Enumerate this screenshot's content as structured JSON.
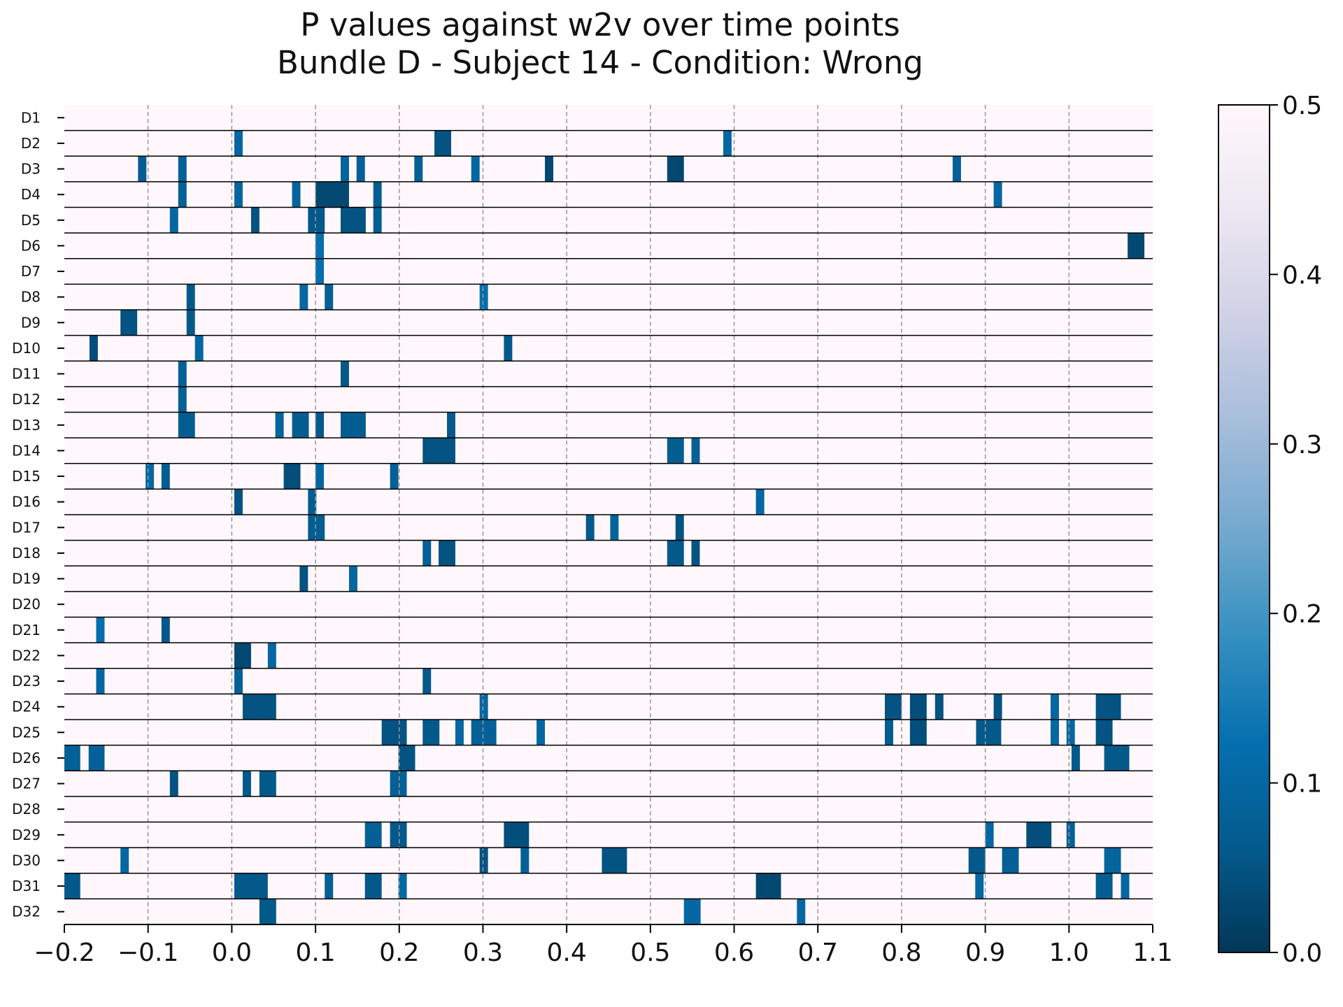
{
  "chart_data": {
    "type": "heatmap",
    "title": "P values against w2v over time points",
    "subtitle": "Bundle D - Subject 14 - Condition: Wrong",
    "xlabel": "",
    "ylabel": "",
    "xlim": [
      -0.2,
      1.1
    ],
    "x_ticks": [
      "−0.2",
      "−0.1",
      "0.0",
      "0.1",
      "0.2",
      "0.3",
      "0.4",
      "0.5",
      "0.6",
      "0.7",
      "0.8",
      "0.9",
      "1.0",
      "1.1"
    ],
    "x_tick_values": [
      -0.2,
      -0.1,
      0.0,
      0.1,
      0.2,
      0.3,
      0.4,
      0.5,
      0.6,
      0.7,
      0.8,
      0.9,
      1.0,
      1.1
    ],
    "grid": "vertical dashed at ticks",
    "colorbar": {
      "min": 0.0,
      "max": 0.5,
      "ticks": [
        "0.0",
        "0.1",
        "0.2",
        "0.3",
        "0.4",
        "0.5"
      ],
      "tick_values": [
        0.0,
        0.1,
        0.2,
        0.3,
        0.4,
        0.5
      ],
      "colormap": "PuBu_r"
    },
    "rows": [
      {
        "label": "D1",
        "segments": []
      },
      {
        "label": "D2",
        "segments": [
          {
            "x0": 0.003,
            "x1": 0.013,
            "p": 0.1
          },
          {
            "x0": 0.242,
            "x1": 0.262,
            "p": 0.05
          },
          {
            "x0": 0.587,
            "x1": 0.597,
            "p": 0.1
          }
        ]
      },
      {
        "label": "D3",
        "segments": [
          {
            "x0": -0.112,
            "x1": -0.102,
            "p": 0.07
          },
          {
            "x0": -0.064,
            "x1": -0.054,
            "p": 0.08
          },
          {
            "x0": 0.13,
            "x1": 0.14,
            "p": 0.09
          },
          {
            "x0": 0.149,
            "x1": 0.159,
            "p": 0.08
          },
          {
            "x0": 0.218,
            "x1": 0.228,
            "p": 0.08
          },
          {
            "x0": 0.286,
            "x1": 0.296,
            "p": 0.1
          },
          {
            "x0": 0.374,
            "x1": 0.384,
            "p": 0.03
          },
          {
            "x0": 0.52,
            "x1": 0.54,
            "p": 0.03
          },
          {
            "x0": 0.861,
            "x1": 0.871,
            "p": 0.08
          }
        ]
      },
      {
        "label": "D4",
        "segments": [
          {
            "x0": -0.064,
            "x1": -0.054,
            "p": 0.08
          },
          {
            "x0": 0.003,
            "x1": 0.013,
            "p": 0.1
          },
          {
            "x0": 0.072,
            "x1": 0.082,
            "p": 0.09
          },
          {
            "x0": 0.1,
            "x1": 0.14,
            "p": 0.03
          },
          {
            "x0": 0.169,
            "x1": 0.179,
            "p": 0.07
          },
          {
            "x0": 0.91,
            "x1": 0.92,
            "p": 0.1
          }
        ]
      },
      {
        "label": "D5",
        "segments": [
          {
            "x0": -0.074,
            "x1": -0.064,
            "p": 0.1
          },
          {
            "x0": 0.023,
            "x1": 0.033,
            "p": 0.05
          },
          {
            "x0": 0.091,
            "x1": 0.111,
            "p": 0.06
          },
          {
            "x0": 0.13,
            "x1": 0.16,
            "p": 0.05
          },
          {
            "x0": 0.169,
            "x1": 0.179,
            "p": 0.07
          }
        ]
      },
      {
        "label": "D6",
        "segments": [
          {
            "x0": 0.1,
            "x1": 0.11,
            "p": 0.12
          },
          {
            "x0": 1.07,
            "x1": 1.09,
            "p": 0.03
          }
        ]
      },
      {
        "label": "D7",
        "segments": [
          {
            "x0": 0.1,
            "x1": 0.11,
            "p": 0.12
          }
        ]
      },
      {
        "label": "D8",
        "segments": [
          {
            "x0": -0.054,
            "x1": -0.044,
            "p": 0.06
          },
          {
            "x0": 0.081,
            "x1": 0.091,
            "p": 0.1
          },
          {
            "x0": 0.111,
            "x1": 0.121,
            "p": 0.08
          },
          {
            "x0": 0.296,
            "x1": 0.306,
            "p": 0.12
          }
        ]
      },
      {
        "label": "D9",
        "segments": [
          {
            "x0": -0.133,
            "x1": -0.113,
            "p": 0.05
          },
          {
            "x0": -0.054,
            "x1": -0.044,
            "p": 0.06
          }
        ]
      },
      {
        "label": "D10",
        "segments": [
          {
            "x0": -0.17,
            "x1": -0.16,
            "p": 0.04
          },
          {
            "x0": -0.044,
            "x1": -0.034,
            "p": 0.1
          },
          {
            "x0": 0.325,
            "x1": 0.335,
            "p": 0.06
          }
        ]
      },
      {
        "label": "D11",
        "segments": [
          {
            "x0": -0.064,
            "x1": -0.054,
            "p": 0.08
          },
          {
            "x0": 0.13,
            "x1": 0.14,
            "p": 0.06
          }
        ]
      },
      {
        "label": "D12",
        "segments": [
          {
            "x0": -0.064,
            "x1": -0.054,
            "p": 0.08
          }
        ]
      },
      {
        "label": "D13",
        "segments": [
          {
            "x0": -0.064,
            "x1": -0.044,
            "p": 0.07
          },
          {
            "x0": 0.052,
            "x1": 0.062,
            "p": 0.09
          },
          {
            "x0": 0.072,
            "x1": 0.092,
            "p": 0.07
          },
          {
            "x0": 0.1,
            "x1": 0.11,
            "p": 0.06
          },
          {
            "x0": 0.13,
            "x1": 0.16,
            "p": 0.07
          },
          {
            "x0": 0.257,
            "x1": 0.267,
            "p": 0.06
          }
        ]
      },
      {
        "label": "D14",
        "segments": [
          {
            "x0": 0.228,
            "x1": 0.267,
            "p": 0.05
          },
          {
            "x0": 0.52,
            "x1": 0.54,
            "p": 0.07
          },
          {
            "x0": 0.549,
            "x1": 0.559,
            "p": 0.08
          }
        ]
      },
      {
        "label": "D15",
        "segments": [
          {
            "x0": -0.103,
            "x1": -0.093,
            "p": 0.1
          },
          {
            "x0": -0.084,
            "x1": -0.074,
            "p": 0.07
          },
          {
            "x0": 0.062,
            "x1": 0.082,
            "p": 0.04
          },
          {
            "x0": 0.1,
            "x1": 0.11,
            "p": 0.1
          },
          {
            "x0": 0.189,
            "x1": 0.199,
            "p": 0.08
          }
        ]
      },
      {
        "label": "D16",
        "segments": [
          {
            "x0": 0.003,
            "x1": 0.013,
            "p": 0.05
          },
          {
            "x0": 0.091,
            "x1": 0.101,
            "p": 0.07
          },
          {
            "x0": 0.626,
            "x1": 0.636,
            "p": 0.1
          }
        ]
      },
      {
        "label": "D17",
        "segments": [
          {
            "x0": 0.091,
            "x1": 0.111,
            "p": 0.07
          },
          {
            "x0": 0.423,
            "x1": 0.433,
            "p": 0.06
          },
          {
            "x0": 0.452,
            "x1": 0.462,
            "p": 0.09
          },
          {
            "x0": 0.53,
            "x1": 0.54,
            "p": 0.05
          }
        ]
      },
      {
        "label": "D18",
        "segments": [
          {
            "x0": 0.228,
            "x1": 0.238,
            "p": 0.08
          },
          {
            "x0": 0.247,
            "x1": 0.267,
            "p": 0.05
          },
          {
            "x0": 0.52,
            "x1": 0.54,
            "p": 0.06
          },
          {
            "x0": 0.549,
            "x1": 0.559,
            "p": 0.05
          }
        ]
      },
      {
        "label": "D19",
        "segments": [
          {
            "x0": 0.081,
            "x1": 0.091,
            "p": 0.05
          },
          {
            "x0": 0.14,
            "x1": 0.15,
            "p": 0.1
          }
        ]
      },
      {
        "label": "D20",
        "segments": []
      },
      {
        "label": "D21",
        "segments": [
          {
            "x0": -0.162,
            "x1": -0.152,
            "p": 0.12
          },
          {
            "x0": -0.084,
            "x1": -0.074,
            "p": 0.06
          }
        ]
      },
      {
        "label": "D22",
        "segments": [
          {
            "x0": 0.003,
            "x1": 0.023,
            "p": 0.03
          },
          {
            "x0": 0.043,
            "x1": 0.053,
            "p": 0.1
          }
        ]
      },
      {
        "label": "D23",
        "segments": [
          {
            "x0": -0.162,
            "x1": -0.152,
            "p": 0.1
          },
          {
            "x0": 0.003,
            "x1": 0.013,
            "p": 0.08
          },
          {
            "x0": 0.228,
            "x1": 0.238,
            "p": 0.06
          }
        ]
      },
      {
        "label": "D24",
        "segments": [
          {
            "x0": 0.013,
            "x1": 0.053,
            "p": 0.05
          },
          {
            "x0": 0.296,
            "x1": 0.306,
            "p": 0.1
          },
          {
            "x0": 0.78,
            "x1": 0.8,
            "p": 0.05
          },
          {
            "x0": 0.81,
            "x1": 0.83,
            "p": 0.04
          },
          {
            "x0": 0.84,
            "x1": 0.85,
            "p": 0.05
          },
          {
            "x0": 0.91,
            "x1": 0.92,
            "p": 0.05
          },
          {
            "x0": 0.978,
            "x1": 0.988,
            "p": 0.1
          },
          {
            "x0": 1.032,
            "x1": 1.062,
            "p": 0.05
          }
        ]
      },
      {
        "label": "D25",
        "segments": [
          {
            "x0": 0.179,
            "x1": 0.209,
            "p": 0.05
          },
          {
            "x0": 0.228,
            "x1": 0.248,
            "p": 0.06
          },
          {
            "x0": 0.267,
            "x1": 0.277,
            "p": 0.1
          },
          {
            "x0": 0.286,
            "x1": 0.316,
            "p": 0.08
          },
          {
            "x0": 0.364,
            "x1": 0.374,
            "p": 0.1
          },
          {
            "x0": 0.78,
            "x1": 0.79,
            "p": 0.07
          },
          {
            "x0": 0.81,
            "x1": 0.83,
            "p": 0.04
          },
          {
            "x0": 0.889,
            "x1": 0.919,
            "p": 0.06
          },
          {
            "x0": 0.978,
            "x1": 0.988,
            "p": 0.1
          },
          {
            "x0": 0.997,
            "x1": 1.007,
            "p": 0.1
          },
          {
            "x0": 1.032,
            "x1": 1.052,
            "p": 0.05
          }
        ]
      },
      {
        "label": "D26",
        "segments": [
          {
            "x0": -0.2,
            "x1": -0.181,
            "p": 0.08
          },
          {
            "x0": -0.171,
            "x1": -0.152,
            "p": 0.08
          },
          {
            "x0": 0.199,
            "x1": 0.219,
            "p": 0.05
          },
          {
            "x0": 1.003,
            "x1": 1.013,
            "p": 0.06
          },
          {
            "x0": 1.042,
            "x1": 1.072,
            "p": 0.06
          }
        ]
      },
      {
        "label": "D27",
        "segments": [
          {
            "x0": -0.074,
            "x1": -0.064,
            "p": 0.05
          },
          {
            "x0": 0.013,
            "x1": 0.023,
            "p": 0.06
          },
          {
            "x0": 0.033,
            "x1": 0.053,
            "p": 0.06
          },
          {
            "x0": 0.189,
            "x1": 0.209,
            "p": 0.08
          }
        ]
      },
      {
        "label": "D28",
        "segments": []
      },
      {
        "label": "D29",
        "segments": [
          {
            "x0": 0.159,
            "x1": 0.179,
            "p": 0.08
          },
          {
            "x0": 0.189,
            "x1": 0.209,
            "p": 0.06
          },
          {
            "x0": 0.325,
            "x1": 0.355,
            "p": 0.04
          },
          {
            "x0": 0.9,
            "x1": 0.91,
            "p": 0.1
          },
          {
            "x0": 0.949,
            "x1": 0.979,
            "p": 0.04
          },
          {
            "x0": 0.997,
            "x1": 1.007,
            "p": 0.08
          }
        ]
      },
      {
        "label": "D30",
        "segments": [
          {
            "x0": -0.133,
            "x1": -0.123,
            "p": 0.1
          },
          {
            "x0": 0.296,
            "x1": 0.306,
            "p": 0.05
          },
          {
            "x0": 0.345,
            "x1": 0.355,
            "p": 0.08
          },
          {
            "x0": 0.442,
            "x1": 0.472,
            "p": 0.05
          },
          {
            "x0": 0.88,
            "x1": 0.9,
            "p": 0.06
          },
          {
            "x0": 0.92,
            "x1": 0.94,
            "p": 0.08
          },
          {
            "x0": 1.042,
            "x1": 1.062,
            "p": 0.09
          }
        ]
      },
      {
        "label": "D31",
        "segments": [
          {
            "x0": -0.2,
            "x1": -0.181,
            "p": 0.06
          },
          {
            "x0": 0.003,
            "x1": 0.043,
            "p": 0.06
          },
          {
            "x0": 0.111,
            "x1": 0.121,
            "p": 0.08
          },
          {
            "x0": 0.159,
            "x1": 0.179,
            "p": 0.06
          },
          {
            "x0": 0.199,
            "x1": 0.209,
            "p": 0.1
          },
          {
            "x0": 0.626,
            "x1": 0.656,
            "p": 0.03
          },
          {
            "x0": 0.888,
            "x1": 0.898,
            "p": 0.1
          },
          {
            "x0": 1.032,
            "x1": 1.052,
            "p": 0.07
          },
          {
            "x0": 1.062,
            "x1": 1.072,
            "p": 0.1
          }
        ]
      },
      {
        "label": "D32",
        "segments": [
          {
            "x0": 0.033,
            "x1": 0.053,
            "p": 0.06
          },
          {
            "x0": 0.54,
            "x1": 0.56,
            "p": 0.1
          },
          {
            "x0": 0.675,
            "x1": 0.685,
            "p": 0.1
          }
        ]
      }
    ]
  }
}
